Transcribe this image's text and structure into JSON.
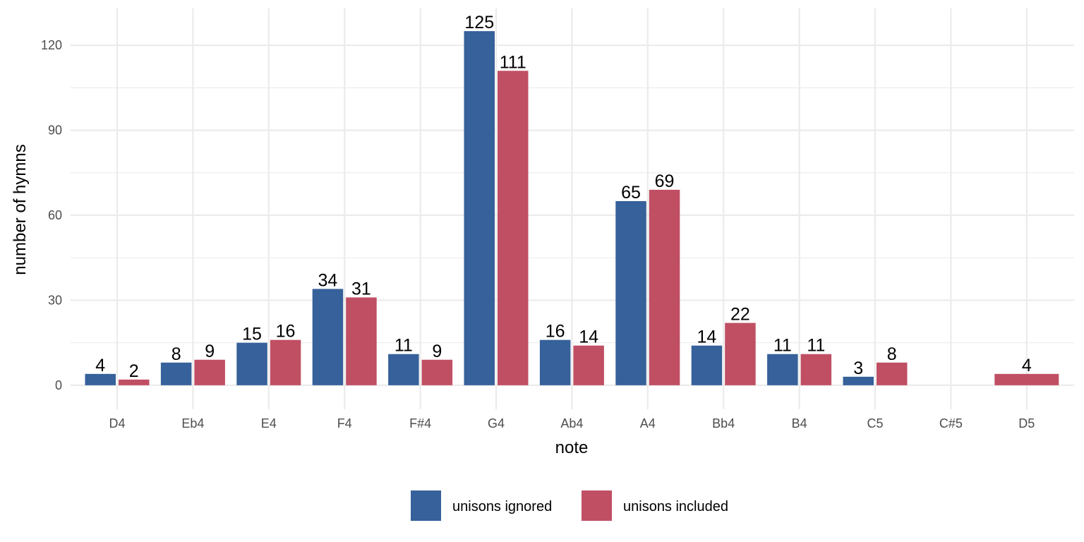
{
  "chart_data": {
    "type": "bar",
    "title": "",
    "xlabel": "note",
    "ylabel": "number of hymns",
    "categories": [
      "D4",
      "Eb4",
      "E4",
      "F4",
      "F#4",
      "G4",
      "Ab4",
      "A4",
      "Bb4",
      "B4",
      "C5",
      "C#5",
      "D5"
    ],
    "series": [
      {
        "name": "unisons ignored",
        "color": "#36619a",
        "values": [
          4,
          8,
          15,
          34,
          11,
          125,
          16,
          65,
          14,
          11,
          3,
          null,
          null
        ]
      },
      {
        "name": "unisons included",
        "color": "#c04f64",
        "values": [
          2,
          9,
          16,
          31,
          9,
          111,
          14,
          69,
          22,
          11,
          8,
          null,
          4
        ]
      }
    ],
    "yticks": [
      0,
      30,
      60,
      90,
      120
    ],
    "ylim": [
      -8.5,
      133
    ],
    "grid": true,
    "legend_position": "bottom",
    "data_labels": true
  }
}
